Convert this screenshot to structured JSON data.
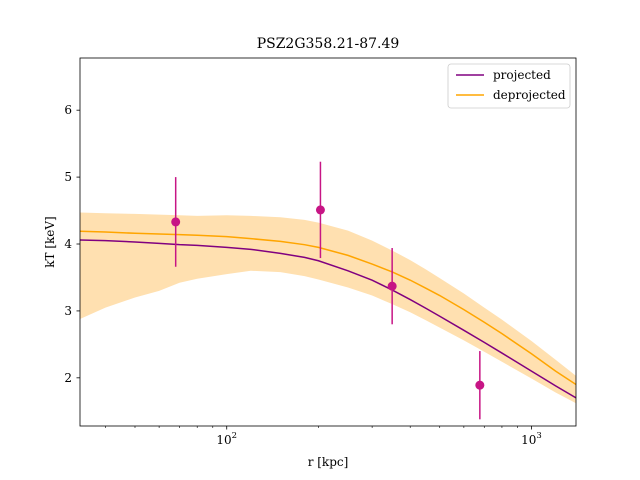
{
  "chart_data": {
    "type": "line",
    "title": "PSZ2G358.21-87.49",
    "xlabel": "r [kpc]",
    "ylabel": "kT [keV]",
    "xscale": "log",
    "xlim": [
      33,
      1400
    ],
    "ylim": [
      1.28,
      6.78
    ],
    "xticks": [
      {
        "value": 100,
        "label": "10",
        "exp": "2"
      },
      {
        "value": 1000,
        "label": "10",
        "exp": "3"
      }
    ],
    "yticks": [
      2,
      3,
      4,
      5,
      6
    ],
    "legend": {
      "position": "top-right",
      "entries": [
        "projected",
        "deprojected"
      ]
    },
    "colors": {
      "projected": "#800080",
      "deprojected": "#FFA500",
      "band": "#FFE0B0",
      "points": "#C71585"
    },
    "series": [
      {
        "name": "projected",
        "x": [
          33,
          40,
          50,
          60,
          70,
          80,
          100,
          120,
          150,
          180,
          200,
          250,
          300,
          350,
          400,
          450,
          500,
          600,
          700,
          800,
          1000,
          1200,
          1400
        ],
        "y": [
          4.06,
          4.05,
          4.03,
          4.01,
          3.99,
          3.98,
          3.95,
          3.92,
          3.86,
          3.8,
          3.75,
          3.6,
          3.46,
          3.31,
          3.17,
          3.04,
          2.92,
          2.71,
          2.53,
          2.37,
          2.1,
          1.88,
          1.7
        ]
      },
      {
        "name": "deprojected",
        "x": [
          33,
          40,
          50,
          60,
          70,
          80,
          100,
          120,
          150,
          180,
          200,
          250,
          300,
          350,
          400,
          450,
          500,
          600,
          700,
          800,
          1000,
          1200,
          1400
        ],
        "y": [
          4.19,
          4.18,
          4.16,
          4.15,
          4.14,
          4.13,
          4.11,
          4.08,
          4.04,
          3.99,
          3.95,
          3.83,
          3.7,
          3.58,
          3.46,
          3.34,
          3.23,
          3.02,
          2.83,
          2.66,
          2.36,
          2.1,
          1.9
        ]
      }
    ],
    "band": {
      "name": "deprojected",
      "x": [
        33,
        40,
        50,
        60,
        70,
        80,
        100,
        120,
        150,
        180,
        200,
        250,
        300,
        350,
        400,
        450,
        500,
        600,
        700,
        800,
        1000,
        1200,
        1400
      ],
      "upper": [
        4.47,
        4.46,
        4.45,
        4.44,
        4.43,
        4.42,
        4.43,
        4.42,
        4.4,
        4.36,
        4.32,
        4.2,
        4.05,
        3.9,
        3.76,
        3.62,
        3.49,
        3.26,
        3.05,
        2.87,
        2.55,
        2.27,
        2.03
      ],
      "lower": [
        2.88,
        3.05,
        3.2,
        3.3,
        3.42,
        3.48,
        3.55,
        3.6,
        3.58,
        3.52,
        3.47,
        3.35,
        3.23,
        3.1,
        2.98,
        2.86,
        2.75,
        2.56,
        2.39,
        2.24,
        1.99,
        1.78,
        1.62
      ]
    },
    "points": {
      "x": [
        68,
        203,
        349,
        677
      ],
      "y": [
        4.33,
        4.51,
        3.37,
        1.89
      ],
      "yerr": [
        0.67,
        0.72,
        0.57,
        0.51
      ]
    }
  }
}
